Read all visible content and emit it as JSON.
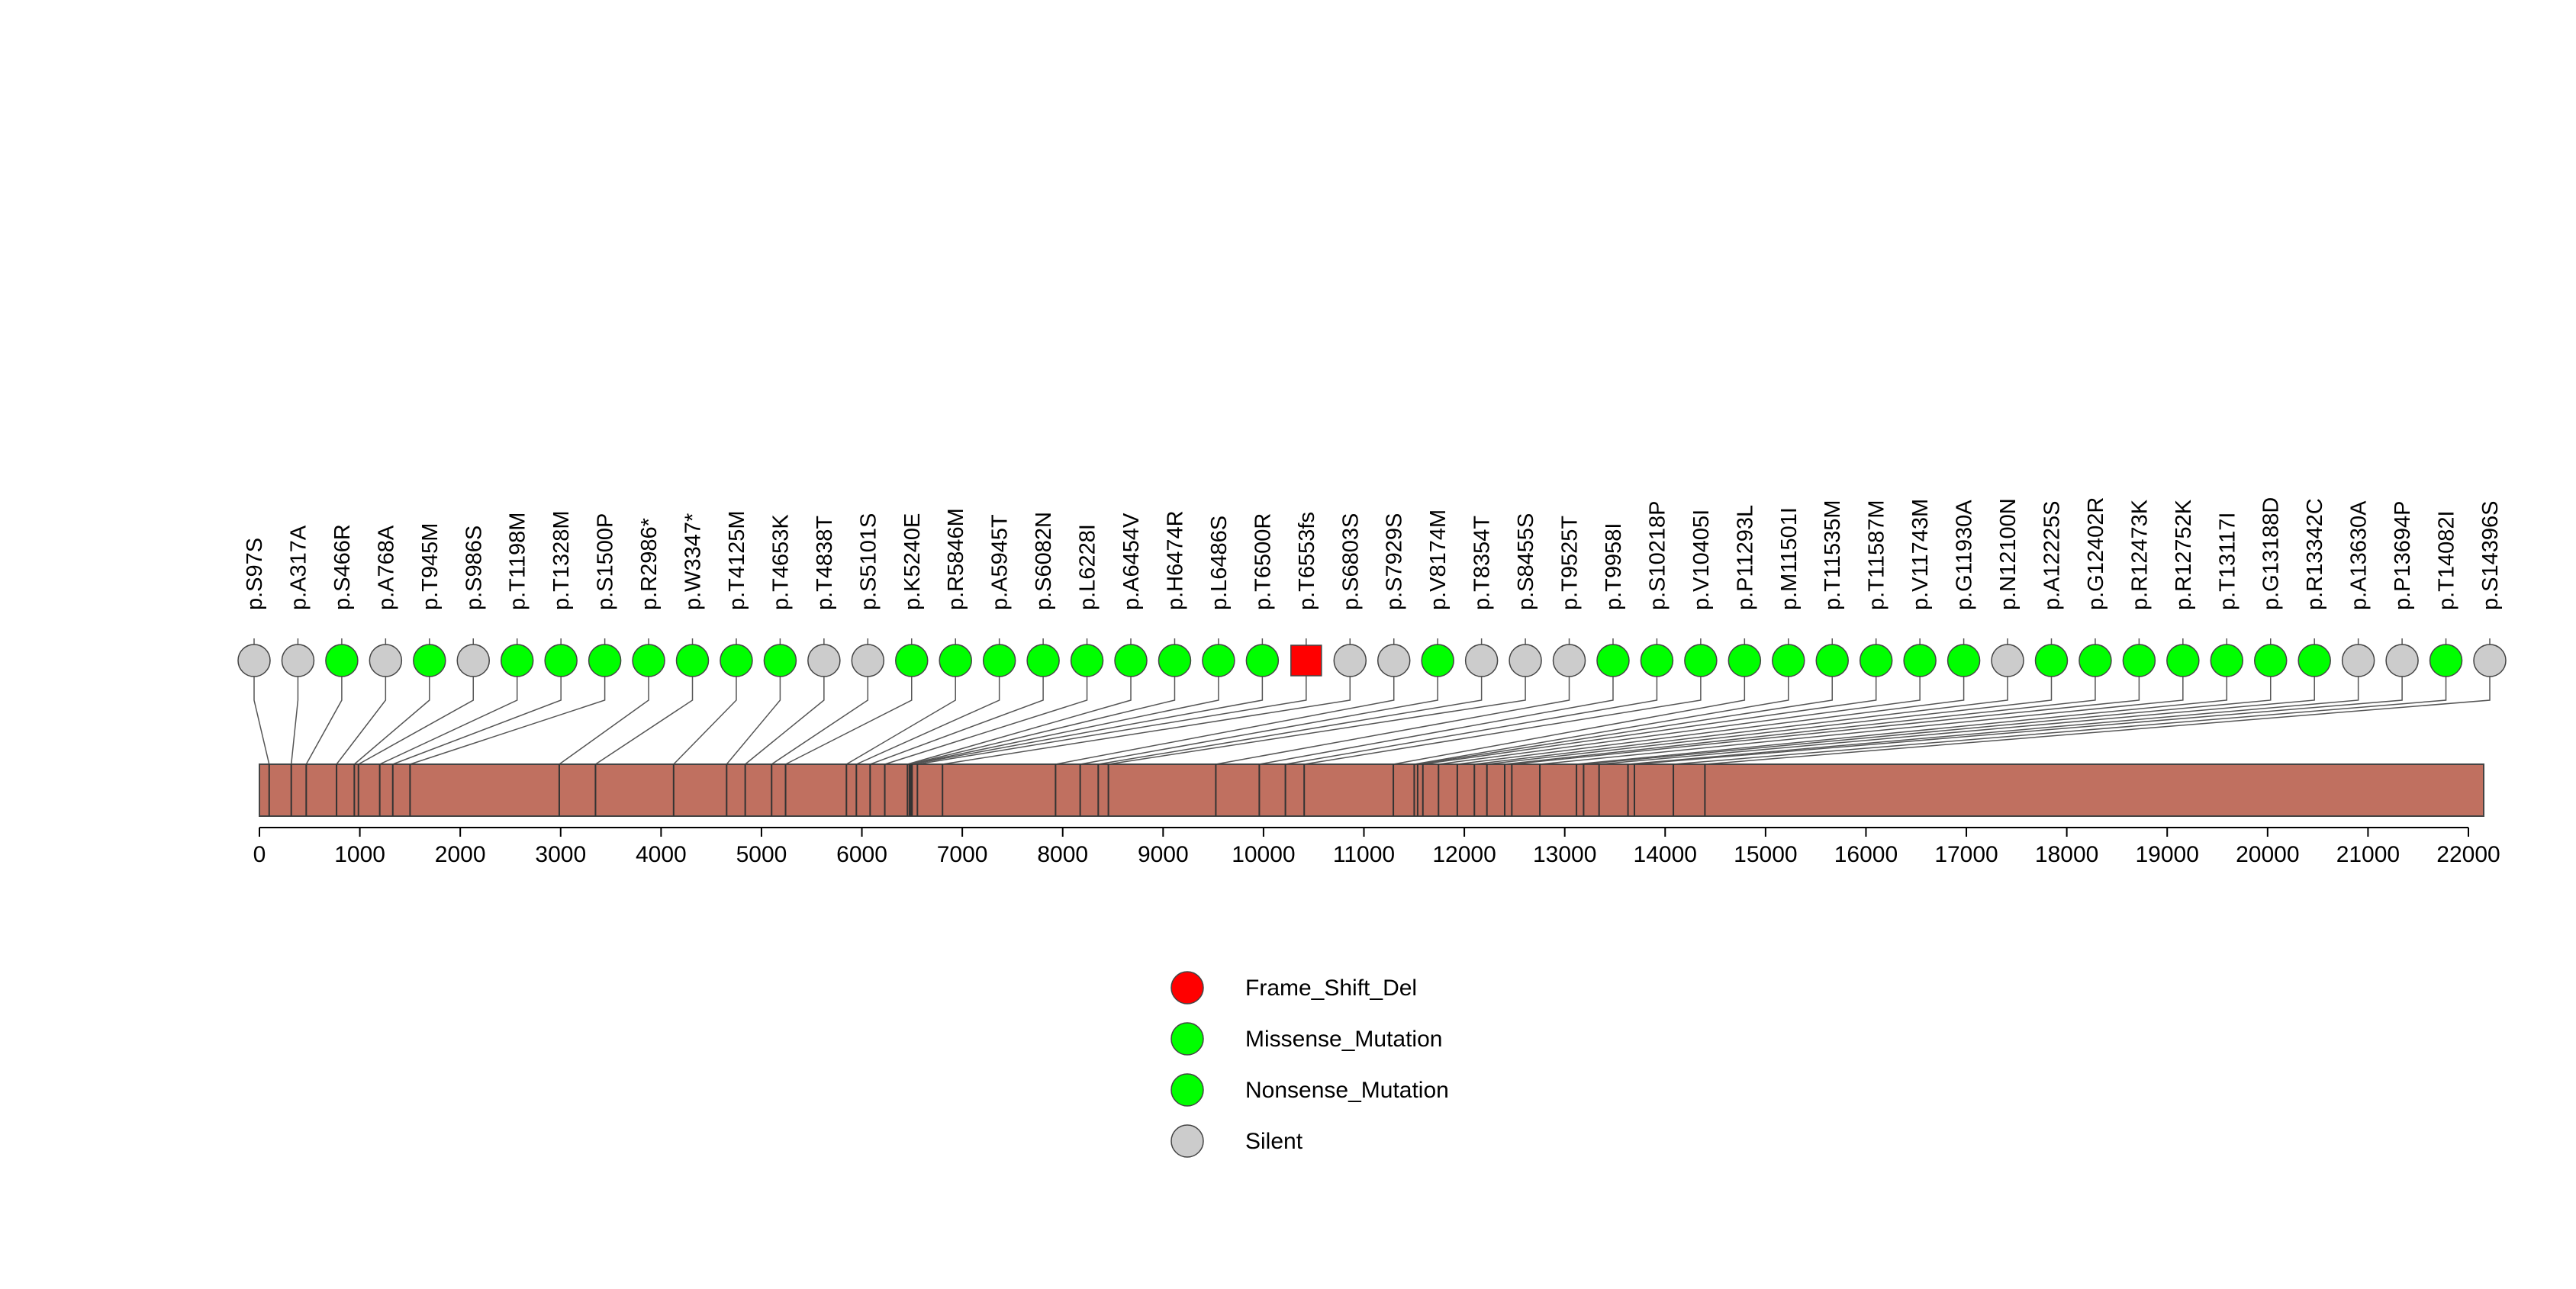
{
  "colors": {
    "background": "#ffffff",
    "protein_bar": "#c07060",
    "frame_shift_del": "#ff0000",
    "missense_mutation": "#00ff00",
    "nonsense_mutation": "#00ff00",
    "silent": "#cccccc",
    "stroke": "#444444"
  },
  "chart_data": {
    "type": "lollipop",
    "title": "",
    "xlabel": "",
    "ylabel": "",
    "xlim": [
      0,
      22152
    ],
    "x_ticks": [
      0,
      1000,
      2000,
      3000,
      4000,
      5000,
      6000,
      7000,
      8000,
      9000,
      10000,
      11000,
      12000,
      13000,
      14000,
      15000,
      16000,
      17000,
      18000,
      19000,
      20000,
      21000,
      22000
    ],
    "protein_length": 22152,
    "mutations": [
      {
        "label": "p.S97S",
        "position": 97,
        "type": "Silent"
      },
      {
        "label": "p.A317A",
        "position": 317,
        "type": "Silent"
      },
      {
        "label": "p.S466R",
        "position": 466,
        "type": "Missense_Mutation"
      },
      {
        "label": "p.A768A",
        "position": 768,
        "type": "Silent"
      },
      {
        "label": "p.T945M",
        "position": 945,
        "type": "Missense_Mutation"
      },
      {
        "label": "p.S986S",
        "position": 986,
        "type": "Silent"
      },
      {
        "label": "p.T1198M",
        "position": 1198,
        "type": "Missense_Mutation"
      },
      {
        "label": "p.T1328M",
        "position": 1328,
        "type": "Missense_Mutation"
      },
      {
        "label": "p.S1500P",
        "position": 1500,
        "type": "Missense_Mutation"
      },
      {
        "label": "p.R2986*",
        "position": 2986,
        "type": "Nonsense_Mutation"
      },
      {
        "label": "p.W3347*",
        "position": 3347,
        "type": "Nonsense_Mutation"
      },
      {
        "label": "p.T4125M",
        "position": 4125,
        "type": "Missense_Mutation"
      },
      {
        "label": "p.T4653K",
        "position": 4653,
        "type": "Missense_Mutation"
      },
      {
        "label": "p.T4838T",
        "position": 4838,
        "type": "Silent"
      },
      {
        "label": "p.S5101S",
        "position": 5101,
        "type": "Silent"
      },
      {
        "label": "p.K5240E",
        "position": 5240,
        "type": "Missense_Mutation"
      },
      {
        "label": "p.R5846M",
        "position": 5846,
        "type": "Missense_Mutation"
      },
      {
        "label": "p.A5945T",
        "position": 5945,
        "type": "Missense_Mutation"
      },
      {
        "label": "p.S6082N",
        "position": 6082,
        "type": "Missense_Mutation"
      },
      {
        "label": "p.L6228I",
        "position": 6228,
        "type": "Missense_Mutation"
      },
      {
        "label": "p.A6454V",
        "position": 6454,
        "type": "Missense_Mutation"
      },
      {
        "label": "p.H6474R",
        "position": 6474,
        "type": "Missense_Mutation"
      },
      {
        "label": "p.L6486S",
        "position": 6486,
        "type": "Missense_Mutation"
      },
      {
        "label": "p.T6500R",
        "position": 6500,
        "type": "Missense_Mutation"
      },
      {
        "label": "p.T6553fs",
        "position": 6553,
        "type": "Frame_Shift_Del"
      },
      {
        "label": "p.S6803S",
        "position": 6803,
        "type": "Silent"
      },
      {
        "label": "p.S7929S",
        "position": 7929,
        "type": "Silent"
      },
      {
        "label": "p.V8174M",
        "position": 8174,
        "type": "Missense_Mutation"
      },
      {
        "label": "p.T8354T",
        "position": 8354,
        "type": "Silent"
      },
      {
        "label": "p.S8455S",
        "position": 8455,
        "type": "Silent"
      },
      {
        "label": "p.T9525T",
        "position": 9525,
        "type": "Silent"
      },
      {
        "label": "p.T9958I",
        "position": 9958,
        "type": "Missense_Mutation"
      },
      {
        "label": "p.S10218P",
        "position": 10218,
        "type": "Missense_Mutation"
      },
      {
        "label": "p.V10405I",
        "position": 10405,
        "type": "Missense_Mutation"
      },
      {
        "label": "p.P11293L",
        "position": 11293,
        "type": "Missense_Mutation"
      },
      {
        "label": "p.M11501I",
        "position": 11501,
        "type": "Missense_Mutation"
      },
      {
        "label": "p.T11535M",
        "position": 11535,
        "type": "Missense_Mutation"
      },
      {
        "label": "p.T11587M",
        "position": 11587,
        "type": "Missense_Mutation"
      },
      {
        "label": "p.V11743M",
        "position": 11743,
        "type": "Missense_Mutation"
      },
      {
        "label": "p.G11930A",
        "position": 11930,
        "type": "Missense_Mutation"
      },
      {
        "label": "p.N12100N",
        "position": 12100,
        "type": "Silent"
      },
      {
        "label": "p.A12225S",
        "position": 12225,
        "type": "Missense_Mutation"
      },
      {
        "label": "p.G12402R",
        "position": 12402,
        "type": "Missense_Mutation"
      },
      {
        "label": "p.R12473K",
        "position": 12473,
        "type": "Missense_Mutation"
      },
      {
        "label": "p.R12752K",
        "position": 12752,
        "type": "Missense_Mutation"
      },
      {
        "label": "p.T13117I",
        "position": 13117,
        "type": "Missense_Mutation"
      },
      {
        "label": "p.G13188D",
        "position": 13188,
        "type": "Missense_Mutation"
      },
      {
        "label": "p.R13342C",
        "position": 13342,
        "type": "Missense_Mutation"
      },
      {
        "label": "p.A13630A",
        "position": 13630,
        "type": "Silent"
      },
      {
        "label": "p.P13694P",
        "position": 13694,
        "type": "Silent"
      },
      {
        "label": "p.T14082I",
        "position": 14082,
        "type": "Missense_Mutation"
      },
      {
        "label": "p.S14396S",
        "position": 14396,
        "type": "Silent"
      }
    ],
    "legend": {
      "placement": "bottom-center",
      "entries": [
        {
          "label": "Frame_Shift_Del",
          "color": "#ff0000"
        },
        {
          "label": "Missense_Mutation",
          "color": "#00ff00"
        },
        {
          "label": "Nonsense_Mutation",
          "color": "#00ff00"
        },
        {
          "label": "Silent",
          "color": "#cccccc"
        }
      ]
    }
  }
}
